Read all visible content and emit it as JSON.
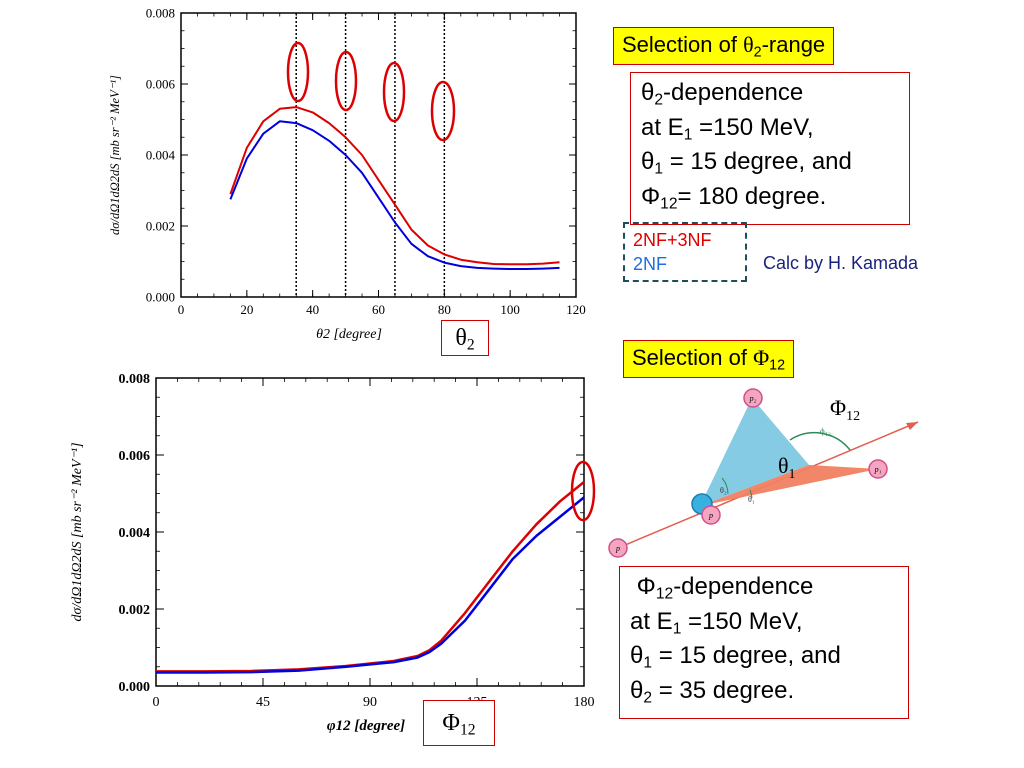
{
  "chart_data": [
    {
      "type": "line",
      "xlabel": "θ2 [degree]",
      "ylabel": "dσ/dΩ1dΩ2dS [mb sr⁻² MeV⁻¹]",
      "xlim": [
        0,
        120
      ],
      "ylim": [
        0,
        0.008
      ],
      "x_ticks": [
        "0",
        "20",
        "40",
        "60",
        "80",
        "100",
        "120"
      ],
      "y_ticks": [
        "0.000",
        "0.002",
        "0.004",
        "0.006",
        "0.008"
      ],
      "series": [
        {
          "name": "2NF+3NF",
          "color": "#dd0000",
          "x": [
            15,
            20,
            25,
            30,
            35,
            40,
            45,
            50,
            55,
            60,
            65,
            70,
            75,
            80,
            85,
            90,
            95,
            100,
            105,
            110,
            115
          ],
          "y": [
            0.0029,
            0.0042,
            0.00495,
            0.0053,
            0.00535,
            0.0052,
            0.0049,
            0.0045,
            0.004,
            0.0033,
            0.0026,
            0.0019,
            0.00145,
            0.0012,
            0.00105,
            0.00098,
            0.00093,
            0.00092,
            0.00092,
            0.00094,
            0.00098
          ]
        },
        {
          "name": "2NF",
          "color": "#0000dd",
          "x": [
            15,
            20,
            25,
            30,
            35,
            40,
            45,
            50,
            55,
            60,
            65,
            70,
            75,
            80,
            85,
            90,
            95,
            100,
            105,
            110,
            115
          ],
          "y": [
            0.00275,
            0.0039,
            0.0046,
            0.00495,
            0.0049,
            0.0047,
            0.0044,
            0.004,
            0.0035,
            0.0028,
            0.0021,
            0.0015,
            0.00115,
            0.00097,
            0.00087,
            0.00082,
            0.0008,
            0.00079,
            0.00079,
            0.0008,
            0.00082
          ]
        }
      ],
      "vertical_lines": [
        35,
        50,
        65,
        80
      ],
      "grid": false
    },
    {
      "type": "line",
      "xlabel": "φ12 [degree]",
      "ylabel": "dσ/dΩ1dΩ2dS [mb sr⁻² MeV⁻¹]",
      "xlim": [
        0,
        180
      ],
      "ylim": [
        0,
        0.008
      ],
      "x_ticks": [
        "0",
        "45",
        "90",
        "135",
        "180"
      ],
      "y_ticks": [
        "0.000",
        "0.002",
        "0.004",
        "0.006",
        "0.008"
      ],
      "series": [
        {
          "name": "2NF+3NF",
          "color": "#dd0000",
          "x": [
            0,
            20,
            40,
            60,
            80,
            100,
            110,
            115,
            120,
            130,
            140,
            150,
            160,
            170,
            180
          ],
          "y": [
            0.00038,
            0.00038,
            0.00039,
            0.00043,
            0.00052,
            0.00065,
            0.00078,
            0.00093,
            0.00118,
            0.0019,
            0.0027,
            0.0035,
            0.0042,
            0.0048,
            0.0053
          ]
        },
        {
          "name": "2NF",
          "color": "#0000dd",
          "x": [
            0,
            20,
            40,
            60,
            80,
            100,
            110,
            115,
            120,
            130,
            140,
            150,
            160,
            170,
            180
          ],
          "y": [
            0.00035,
            0.00035,
            0.00036,
            0.0004,
            0.0005,
            0.00062,
            0.00074,
            0.00088,
            0.0011,
            0.0017,
            0.0025,
            0.0033,
            0.0039,
            0.0044,
            0.0049
          ]
        }
      ],
      "grid": false
    }
  ],
  "labels": {
    "sel_theta_pre": "Selection of ",
    "sel_theta_sym": "θ",
    "sel_theta_sub": "2",
    "sel_theta_post": "-range",
    "sel_phi_pre": "Selection of ",
    "sel_phi_sym": "Φ",
    "sel_phi_sub": "12",
    "theta_box": {
      "l1_sym": "θ",
      "l1_sub": "2",
      "l1_post": "-dependence",
      "l2_pre": "at E",
      "l2_sub": "1",
      "l2_post": " =150 MeV,",
      "l3_sym": "θ",
      "l3_sub": "1",
      "l3_post": " = 15 degree, and",
      "l4_sym": "Φ",
      "l4_sub": "12",
      "l4_post": "= 180 degree."
    },
    "phi_box": {
      "l1_sym": "Φ",
      "l1_sub": "12",
      "l1_post": "-dependence",
      "l2_pre": "at E",
      "l2_sub": "1",
      "l2_post": " =150 MeV,",
      "l3_sym": "θ",
      "l3_sub": "1",
      "l3_post": " = 15 degree, and",
      "l4_sym": "θ",
      "l4_sub": "2",
      "l4_post": " = 35 degree."
    },
    "legend_3nf": "2NF+3NF",
    "legend_2nf": "2NF",
    "credit": "Calc by H. Kamada",
    "theta2_box_sym": "θ",
    "theta2_box_sub": "2",
    "phi12_box_sym": "Φ",
    "phi12_box_sub": "12",
    "diagram": {
      "phi_label_sym": "Φ",
      "phi_label_sub": "12",
      "theta1_sym": "θ",
      "theta1_sub": "1",
      "p_label": "p",
      "p2_label": "p₂",
      "p1_label": "p₁",
      "phi_small": "ϕ₁₂",
      "th2_small": "θ₂",
      "th1_small": "θ₁"
    }
  },
  "colors": {
    "red": "#dd0000",
    "blue": "#0000dd",
    "highlight": "#ffff00",
    "credit": "#1a237e",
    "triangle_blue": "#7ec8e3",
    "triangle_orange": "#f08060",
    "particle_pink": "#f4a6c0",
    "particle_cyan": "#3ab0e0"
  }
}
